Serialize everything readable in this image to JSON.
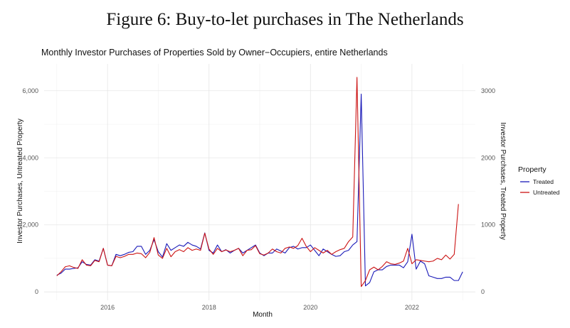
{
  "figure_title": "Figure 6: Buy-to-let purchases in The Netherlands",
  "chart_data": {
    "type": "line",
    "title": "Monthly Investor Purchases of Properties Sold by Owner−Occupiers, entire Netherlands",
    "xlabel": "Month",
    "ylabel": "Investor Purchases, Untreated Property",
    "ylabel_right": "Investor Purchases, Treated Property",
    "ylim": [
      -250,
      6800
    ],
    "ylim_right": [
      -125,
      3400
    ],
    "yticks": [
      0,
      2000,
      4000,
      6000
    ],
    "ytick_labels": [
      "0",
      "2,000",
      "4,000",
      "6,000"
    ],
    "yticks_right": [
      0,
      1000,
      2000,
      3000
    ],
    "ytick_labels_right": [
      "0",
      "1000",
      "2000",
      "3000"
    ],
    "xlim": [
      2014.75,
      2023.25
    ],
    "xticks": [
      2016,
      2018,
      2020,
      2022
    ],
    "xtick_labels": [
      "2016",
      "2018",
      "2020",
      "2022"
    ],
    "x_start": 2015.0,
    "x_step_months": 1,
    "grid": true,
    "legend_title": "Property",
    "legend_position": "right",
    "series": [
      {
        "name": "Treated",
        "axis": "right",
        "color": "#1a1ab8",
        "values": [
          250,
          280,
          340,
          340,
          350,
          360,
          450,
          410,
          400,
          480,
          460,
          650,
          400,
          390,
          560,
          540,
          560,
          590,
          600,
          680,
          680,
          560,
          620,
          780,
          600,
          520,
          720,
          620,
          660,
          700,
          680,
          740,
          700,
          680,
          640,
          880,
          620,
          580,
          700,
          600,
          630,
          580,
          620,
          650,
          580,
          620,
          660,
          700,
          580,
          540,
          580,
          580,
          640,
          610,
          580,
          660,
          680,
          640,
          660,
          660,
          700,
          620,
          540,
          640,
          600,
          560,
          530,
          540,
          600,
          620,
          700,
          750,
          2950,
          90,
          140,
          300,
          330,
          330,
          380,
          400,
          400,
          400,
          360,
          450,
          860,
          340,
          460,
          420,
          240,
          220,
          200,
          200,
          220,
          220,
          170,
          170,
          300
        ]
      },
      {
        "name": "Untreated",
        "axis": "left",
        "color": "#cc1414",
        "values": [
          480,
          600,
          750,
          780,
          730,
          700,
          960,
          800,
          780,
          940,
          900,
          1300,
          800,
          780,
          1060,
          1020,
          1060,
          1120,
          1120,
          1160,
          1140,
          1020,
          1180,
          1620,
          1100,
          1000,
          1300,
          1050,
          1200,
          1260,
          1200,
          1320,
          1240,
          1280,
          1240,
          1750,
          1280,
          1120,
          1300,
          1200,
          1250,
          1200,
          1240,
          1300,
          1080,
          1240,
          1260,
          1380,
          1140,
          1100,
          1160,
          1280,
          1200,
          1160,
          1300,
          1340,
          1300,
          1380,
          1600,
          1360,
          1200,
          1320,
          1240,
          1160,
          1240,
          1120,
          1200,
          1260,
          1300,
          1500,
          1640,
          6400,
          160,
          340,
          660,
          740,
          660,
          760,
          900,
          840,
          820,
          860,
          920,
          1300,
          840,
          960,
          940,
          920,
          900,
          920,
          1000,
          960,
          1100,
          980,
          1120,
          2620
        ]
      }
    ]
  }
}
